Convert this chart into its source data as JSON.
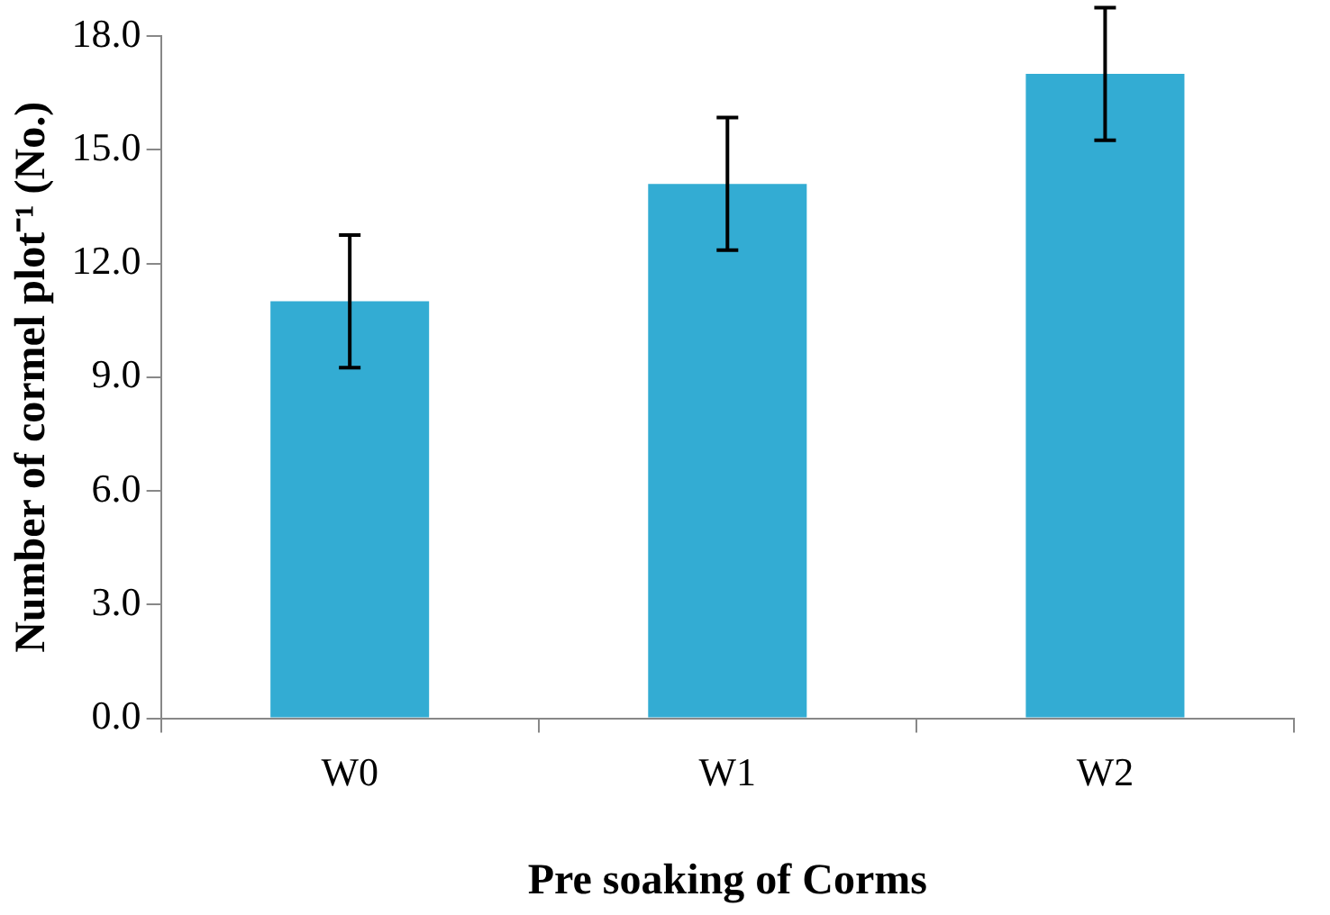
{
  "chart_data": {
    "type": "bar",
    "xlabel": "Pre soaking of Corms",
    "ylabel": "Number of cormel plot⁻¹ (No.)",
    "categories": [
      "W0",
      "W1",
      "W2"
    ],
    "values": [
      11.0,
      14.1,
      17.0
    ],
    "errors": [
      1.75,
      1.75,
      1.75
    ],
    "color": "#33acd3",
    "ylim": [
      0,
      18
    ],
    "yticks": [
      {
        "value": 0,
        "label": "0.0"
      },
      {
        "value": 3,
        "label": "3.0"
      },
      {
        "value": 6,
        "label": "6.0"
      },
      {
        "value": 9,
        "label": "9.0"
      },
      {
        "value": 12,
        "label": "12.0"
      },
      {
        "value": 15,
        "label": "15.0"
      },
      {
        "value": 18,
        "label": "18.0"
      }
    ],
    "grid": false,
    "legend": false
  }
}
